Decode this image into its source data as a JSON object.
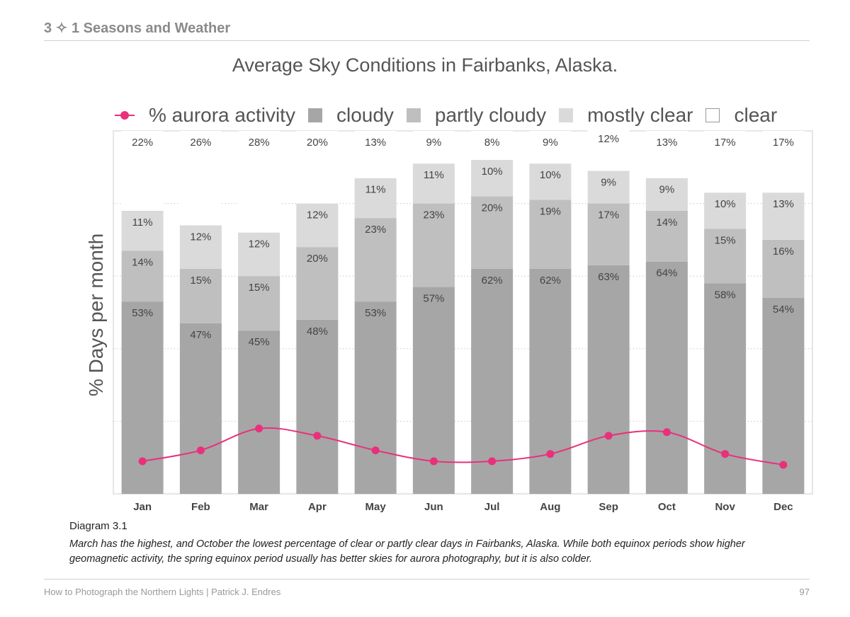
{
  "header": {
    "title": "3 ✧ 1  Seasons and Weather"
  },
  "legend": {
    "aurora": "% aurora activity",
    "cloudy": "cloudy",
    "partly_cloudy": "partly cloudy",
    "mostly_clear": "mostly clear",
    "clear": "clear"
  },
  "colors": {
    "cloudy": "#a6a6a6",
    "partly_cloudy": "#bfbfbf",
    "mostly_clear": "#dadada",
    "clear": "#ffffff",
    "aurora": "#e8317a",
    "frame": "#cccccc",
    "grid": "#c8c8c8"
  },
  "chart_data": {
    "type": "bar",
    "stacked": true,
    "title": "Average Sky Conditions in Fairbanks, Alaska.",
    "xlabel": "",
    "ylabel": "% Days per month",
    "ylim": [
      0,
      100
    ],
    "grid": true,
    "categories": [
      "Jan",
      "Feb",
      "Mar",
      "Apr",
      "May",
      "Jun",
      "Jul",
      "Aug",
      "Sep",
      "Oct",
      "Nov",
      "Dec"
    ],
    "series": [
      {
        "name": "cloudy",
        "values": [
          53,
          47,
          45,
          48,
          53,
          57,
          62,
          62,
          63,
          64,
          58,
          54
        ],
        "labels": [
          "53%",
          "47%",
          "45%",
          "48%",
          "53%",
          "57%",
          "62%",
          "62%",
          "63%",
          "64%",
          "58%",
          "54%"
        ]
      },
      {
        "name": "partly cloudy",
        "values": [
          14,
          15,
          15,
          20,
          23,
          23,
          20,
          19,
          17,
          14,
          15,
          16
        ],
        "labels": [
          "14%",
          "15%",
          "15%",
          "20%",
          "23%",
          "23%",
          "20%",
          "19%",
          "17%",
          "14%",
          "15%",
          "16%"
        ]
      },
      {
        "name": "mostly clear",
        "values": [
          11,
          12,
          12,
          12,
          11,
          11,
          10,
          10,
          9,
          9,
          10,
          13
        ],
        "labels": [
          "11%",
          "12%",
          "12%",
          "12%",
          "11%",
          "11%",
          "10%",
          "10%",
          "9%",
          "9%",
          "10%",
          "13%"
        ]
      },
      {
        "name": "clear",
        "values": [
          22,
          26,
          28,
          20,
          13,
          9,
          8,
          9,
          12,
          13,
          17,
          17
        ],
        "labels": [
          "22%",
          "26%",
          "28%",
          "20%",
          "13%",
          "9%",
          "8%",
          "9%",
          "12%",
          "13%",
          "17%",
          "17%"
        ]
      }
    ],
    "line_series": {
      "name": "% aurora activity",
      "values": [
        9,
        12,
        18,
        16,
        12,
        9,
        9,
        11,
        16,
        17,
        11,
        8
      ]
    }
  },
  "caption": {
    "title": "Diagram 3.1",
    "text": "March has the highest, and October the lowest percentage of clear or partly clear days in Fairbanks, Alaska. While both equinox periods show higher geomagnetic activity, the spring equinox period usually has better skies for aurora photography, but it is also colder."
  },
  "footer": {
    "left": "How to Photograph the Northern Lights  |  Patrick J. Endres",
    "page": "97"
  }
}
